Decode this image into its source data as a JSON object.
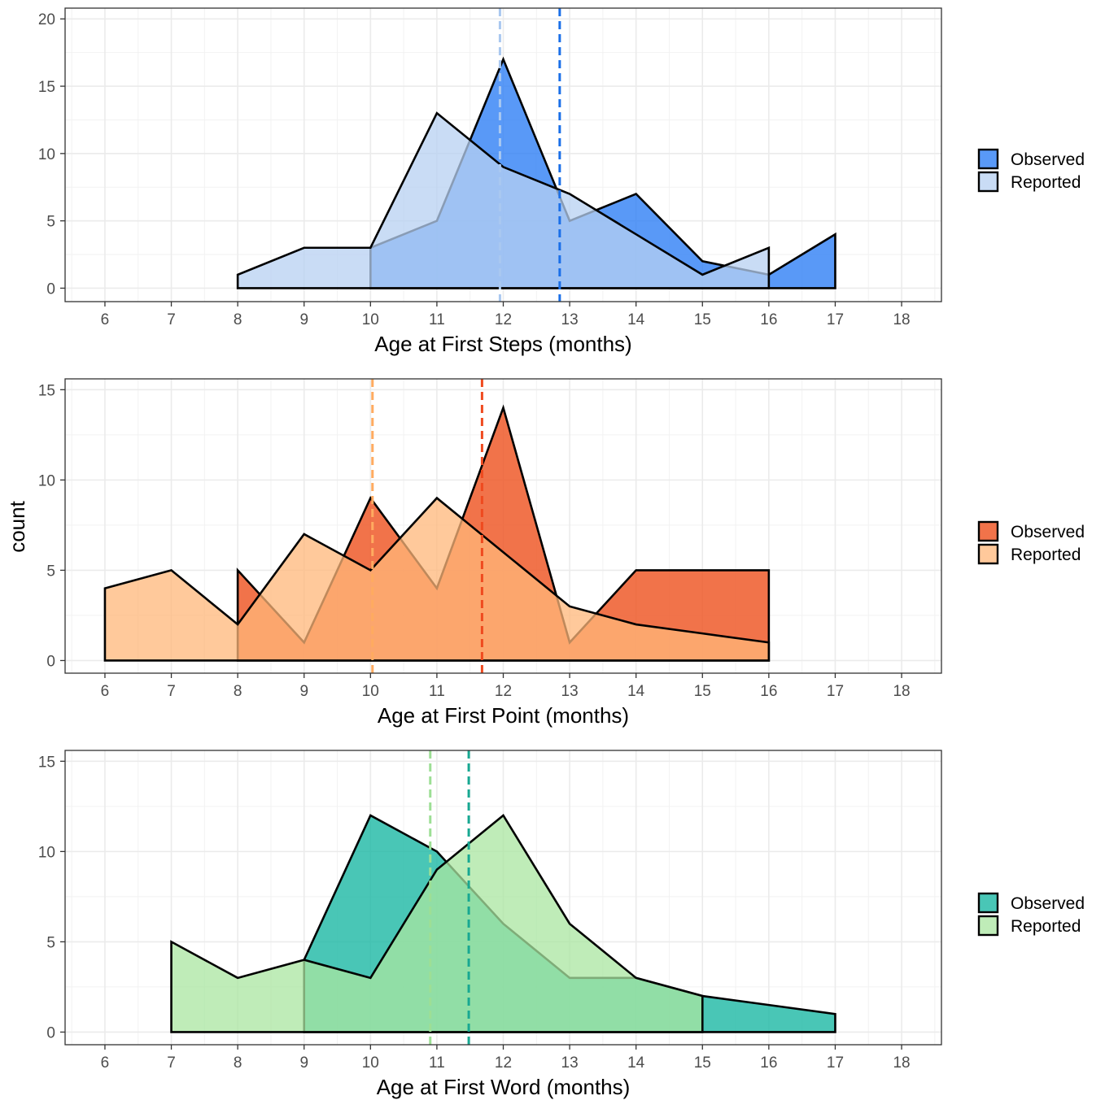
{
  "figure": {
    "shared_ylabel": "count"
  },
  "chart_data": [
    {
      "type": "area",
      "xlabel": "Age at First Steps (months)",
      "ylabel": "count",
      "xlim": [
        5.4,
        18.6
      ],
      "ylim": [
        -1,
        20.8
      ],
      "xticks": [
        6,
        7,
        8,
        9,
        10,
        11,
        12,
        13,
        14,
        15,
        16,
        17,
        18
      ],
      "yticks": [
        0,
        5,
        10,
        15,
        20
      ],
      "grid": true,
      "legend_position": "right",
      "series": [
        {
          "name": "Observed",
          "color": "#2f7ff5",
          "opacity": 0.8,
          "x": [
            10,
            11,
            12,
            13,
            14,
            15,
            16,
            16,
            17
          ],
          "y": [
            3,
            5,
            17,
            5,
            7,
            2,
            1,
            1,
            4
          ],
          "mean": 12.85,
          "mean_color": "#1a6fe8"
        },
        {
          "name": "Reported",
          "color": "#b7d0f2",
          "opacity": 0.75,
          "x": [
            8,
            8,
            9,
            10,
            11,
            12,
            13,
            14,
            15,
            16,
            16
          ],
          "y": [
            0,
            1,
            3,
            3,
            13,
            9,
            7,
            4,
            1,
            3,
            3
          ],
          "mean": 11.95,
          "mean_color": "#a9c8f0"
        }
      ]
    },
    {
      "type": "area",
      "xlabel": "Age at First Point (months)",
      "ylabel": "count",
      "xlim": [
        5.4,
        18.6
      ],
      "ylim": [
        -0.7,
        15.6
      ],
      "xticks": [
        6,
        7,
        8,
        9,
        10,
        11,
        12,
        13,
        14,
        15,
        16,
        17,
        18
      ],
      "yticks": [
        0,
        5,
        10,
        15
      ],
      "grid": true,
      "legend_position": "right",
      "series": [
        {
          "name": "Observed",
          "color": "#ef5a2a",
          "opacity": 0.85,
          "x": [
            8,
            8,
            9,
            10,
            11,
            12,
            13,
            14,
            15,
            16,
            16
          ],
          "y": [
            0,
            5,
            1,
            9,
            4,
            14,
            1,
            5,
            5,
            5,
            5
          ],
          "mean": 11.68,
          "mean_color": "#ef4a1f"
        },
        {
          "name": "Reported",
          "color": "#ffb77a",
          "opacity": 0.75,
          "x": [
            6,
            6,
            7,
            8,
            9,
            10,
            11,
            12,
            13,
            14,
            15,
            16,
            16
          ],
          "y": [
            0,
            4,
            5,
            2,
            7,
            5,
            9,
            6,
            3,
            2,
            1.5,
            1,
            1
          ],
          "mean": 10.03,
          "mean_color": "#ffab60"
        }
      ]
    },
    {
      "type": "area",
      "xlabel": "Age at First Word (months)",
      "ylabel": "count",
      "xlim": [
        5.4,
        18.6
      ],
      "ylim": [
        -0.7,
        15.6
      ],
      "xticks": [
        6,
        7,
        8,
        9,
        10,
        11,
        12,
        13,
        14,
        15,
        16,
        17,
        18
      ],
      "yticks": [
        0,
        5,
        10,
        15
      ],
      "grid": true,
      "legend_position": "right",
      "series": [
        {
          "name": "Observed",
          "color": "#1cb8a4",
          "opacity": 0.8,
          "x": [
            9,
            10,
            11,
            12,
            13,
            14,
            15,
            16,
            17
          ],
          "y": [
            4,
            12,
            10,
            6,
            3,
            3,
            2,
            1.5,
            1
          ],
          "mean": 11.48,
          "mean_color": "#18a892"
        },
        {
          "name": "Reported",
          "color": "#a9e6a0",
          "opacity": 0.75,
          "x": [
            7,
            7,
            8,
            9,
            10,
            11,
            12,
            13,
            14,
            15,
            15
          ],
          "y": [
            0,
            5,
            3,
            4,
            3,
            9,
            12,
            6,
            3,
            2,
            2
          ],
          "mean": 10.9,
          "mean_color": "#9ddf95"
        }
      ]
    }
  ]
}
